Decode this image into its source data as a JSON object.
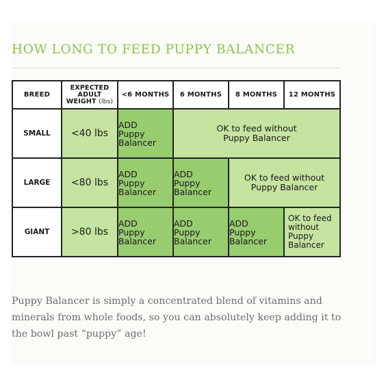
{
  "title": "HOW LONG TO FEED PUPPY BALANCER",
  "table": {
    "headers": {
      "breed": "BREED",
      "weight_line1": "EXPECTED",
      "weight_line2": "ADULT",
      "weight_line3": "WEIGHT",
      "weight_unit": "(lbs)",
      "col1": "<6 MONTHS",
      "col2": "6 MONTHS",
      "col3": "8 MONTHS",
      "col4": "12 MONTHS"
    },
    "rows": [
      {
        "breed": "SMALL",
        "weight": "<40 lbs",
        "add": [
          "ADD",
          "Puppy",
          "Balancer"
        ],
        "ok": [
          "OK to feed without",
          "Puppy Balancer"
        ]
      },
      {
        "breed": "LARGE",
        "weight": "<80 lbs",
        "add": [
          "ADD",
          "Puppy",
          "Balancer"
        ],
        "ok": [
          "OK to feed without",
          "Puppy Balancer"
        ]
      },
      {
        "breed": "GIANT",
        "weight": ">80 lbs",
        "add": [
          "ADD",
          "Puppy",
          "Balancer"
        ],
        "ok": [
          "OK to feed",
          "without",
          "Puppy",
          "Balancer"
        ]
      }
    ]
  },
  "paragraph": "Puppy Balancer is simply a concentrated blend of vitamins and minerals from whole foods, so you can absolutely keep adding it to the bowl past “puppy” age!",
  "colors": {
    "title": "#8cc44f",
    "dark_green": "#97cc6f",
    "light_green": "#c4e4a0"
  }
}
